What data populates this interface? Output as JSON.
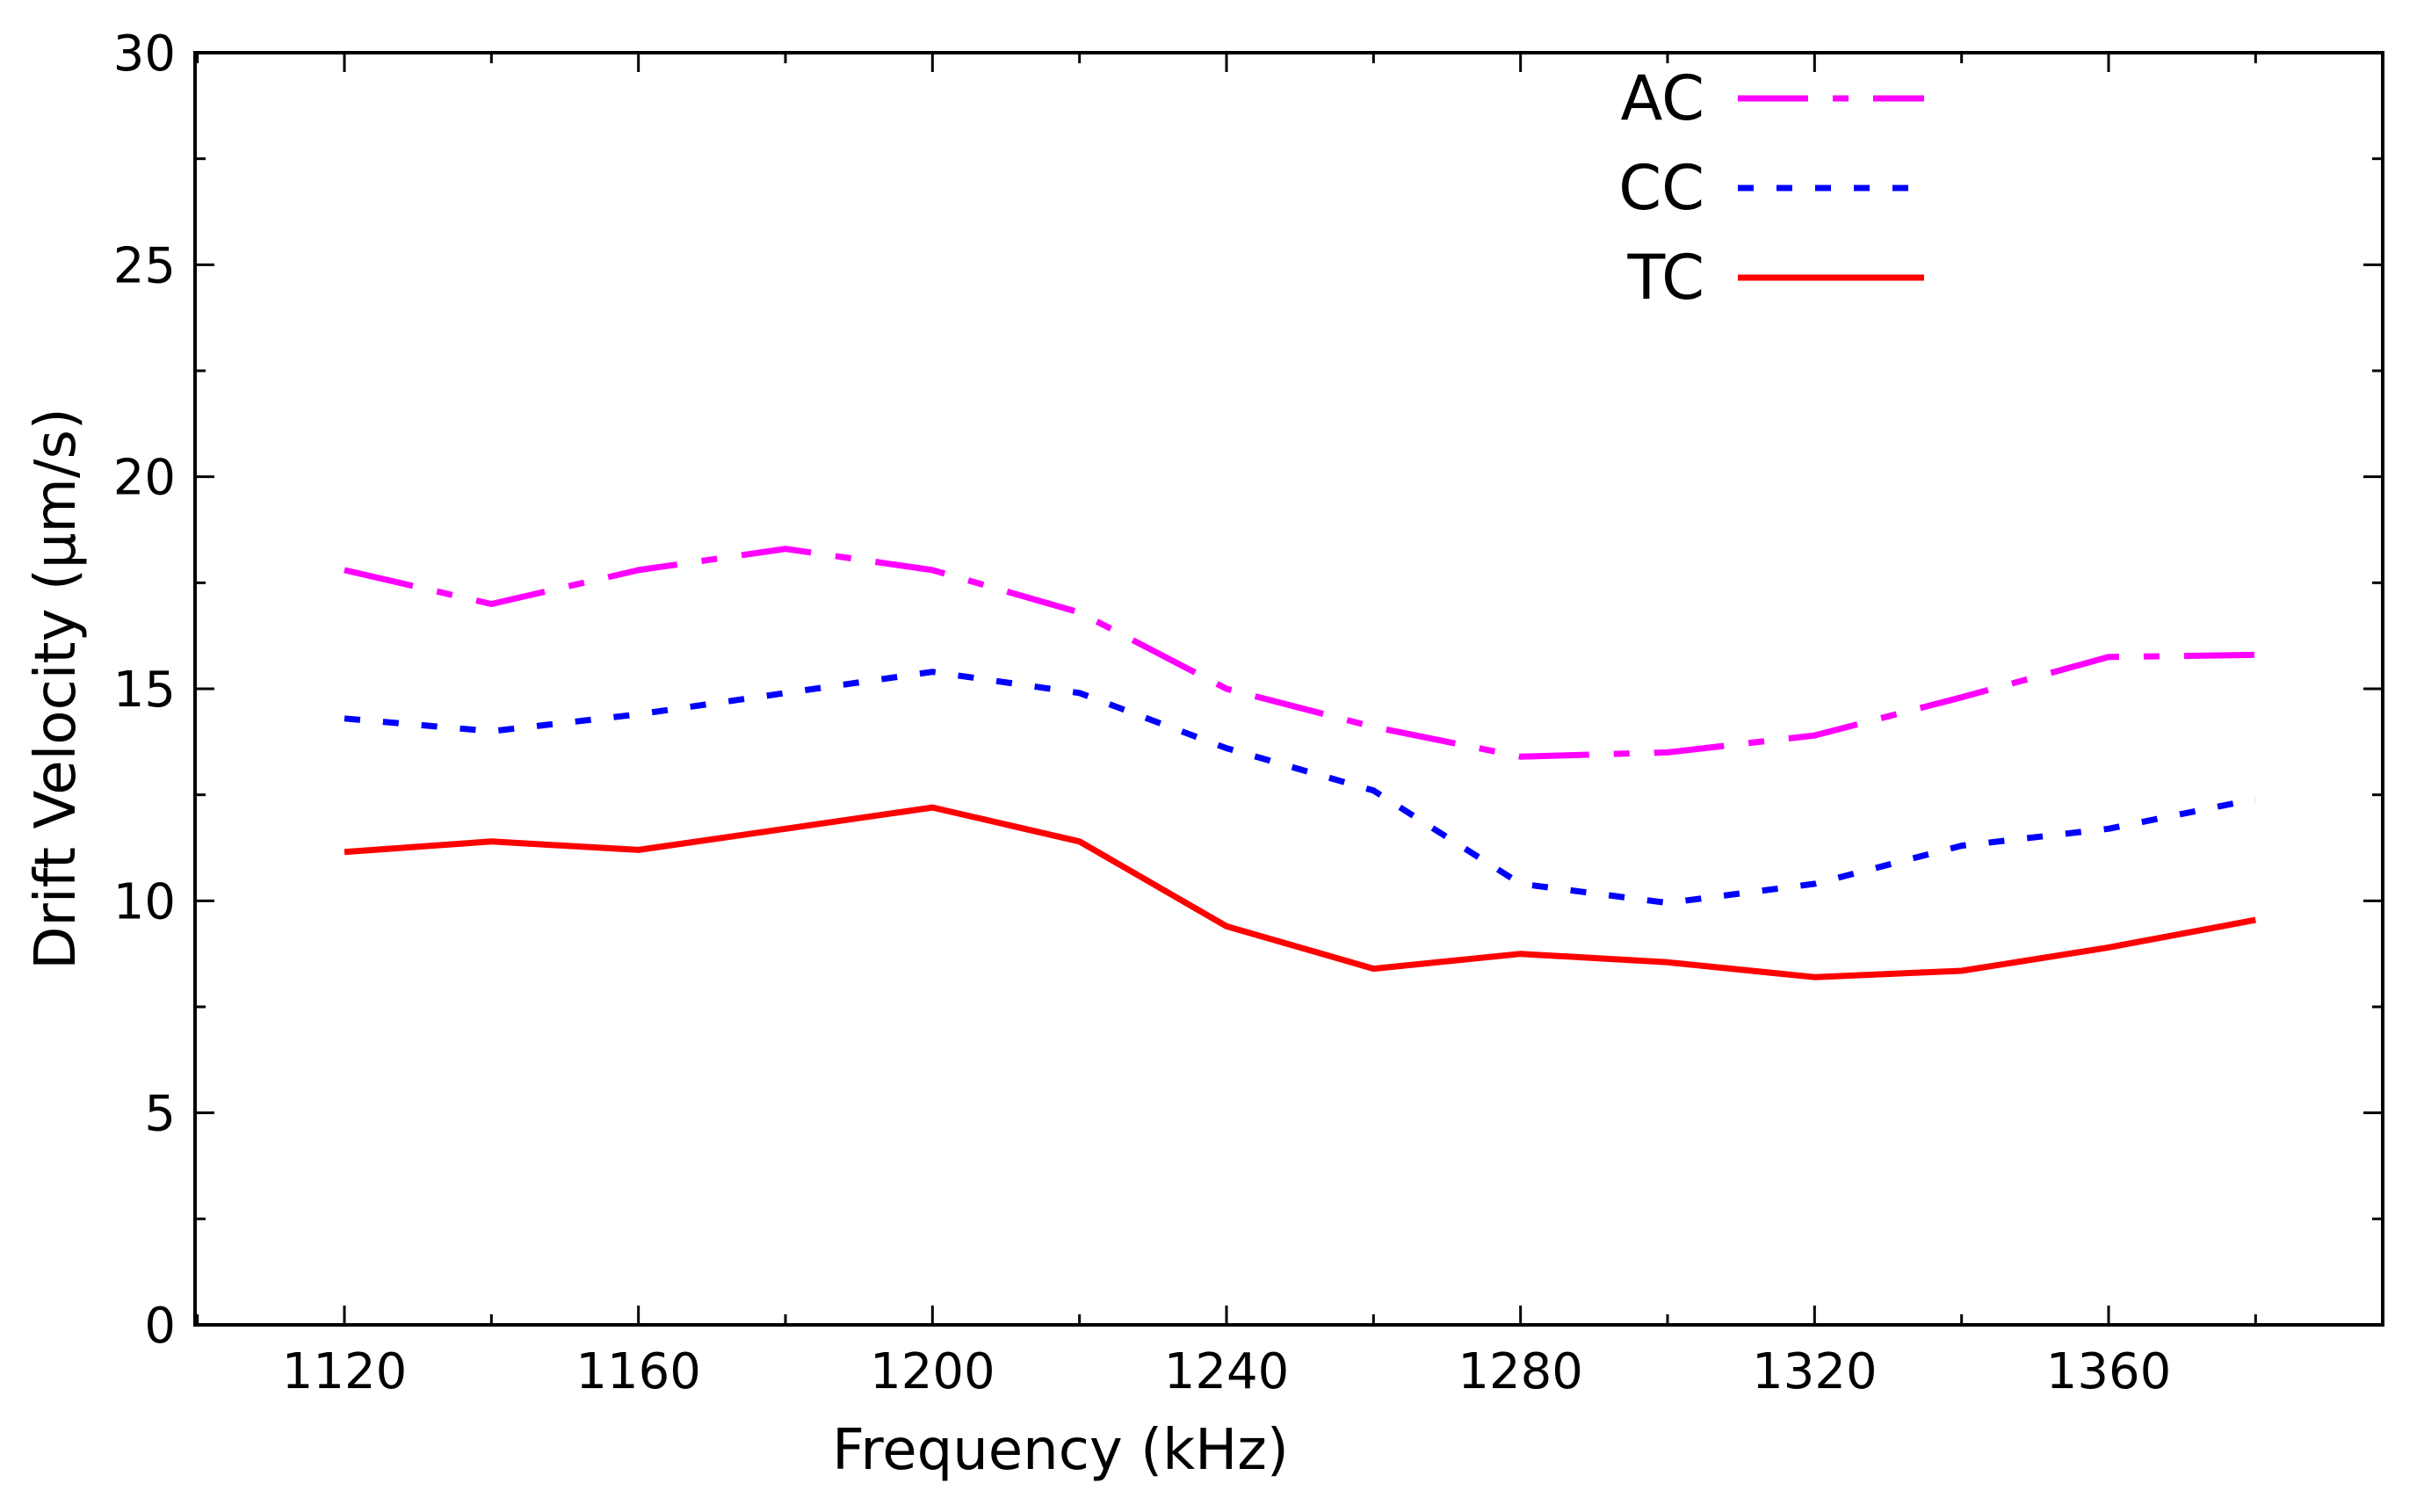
{
  "chart_data": {
    "type": "line",
    "title": "",
    "xlabel": "Frequency (kHz)",
    "ylabel": "Drift Velocity (μm/s)",
    "xlim": [
      1100,
      1390
    ],
    "ylim": [
      0,
      30
    ],
    "xticks": [
      1120,
      1160,
      1200,
      1240,
      1280,
      1320,
      1360
    ],
    "yticks": [
      0,
      5,
      10,
      15,
      20,
      25,
      30
    ],
    "grid": false,
    "legend_position": "top-right",
    "x": [
      1120,
      1140,
      1160,
      1180,
      1200,
      1220,
      1240,
      1260,
      1280,
      1300,
      1320,
      1340,
      1360,
      1380
    ],
    "series": [
      {
        "name": "AC",
        "color": "#ff00ff",
        "style": "dash-dot",
        "values": [
          17.8,
          17.0,
          17.8,
          18.3,
          17.8,
          16.8,
          15.0,
          14.1,
          13.4,
          13.5,
          13.9,
          14.8,
          15.75,
          15.8
        ]
      },
      {
        "name": "CC",
        "color": "#0000ff",
        "style": "dotted",
        "values": [
          14.3,
          14.0,
          14.4,
          14.9,
          15.4,
          14.9,
          13.6,
          12.6,
          10.4,
          9.95,
          10.4,
          11.3,
          11.7,
          12.4
        ]
      },
      {
        "name": "TC",
        "color": "#ff0000",
        "style": "solid",
        "values": [
          11.15,
          11.4,
          11.2,
          11.7,
          12.2,
          11.4,
          9.4,
          8.4,
          8.75,
          8.55,
          8.2,
          8.35,
          8.9,
          9.55
        ]
      }
    ]
  }
}
